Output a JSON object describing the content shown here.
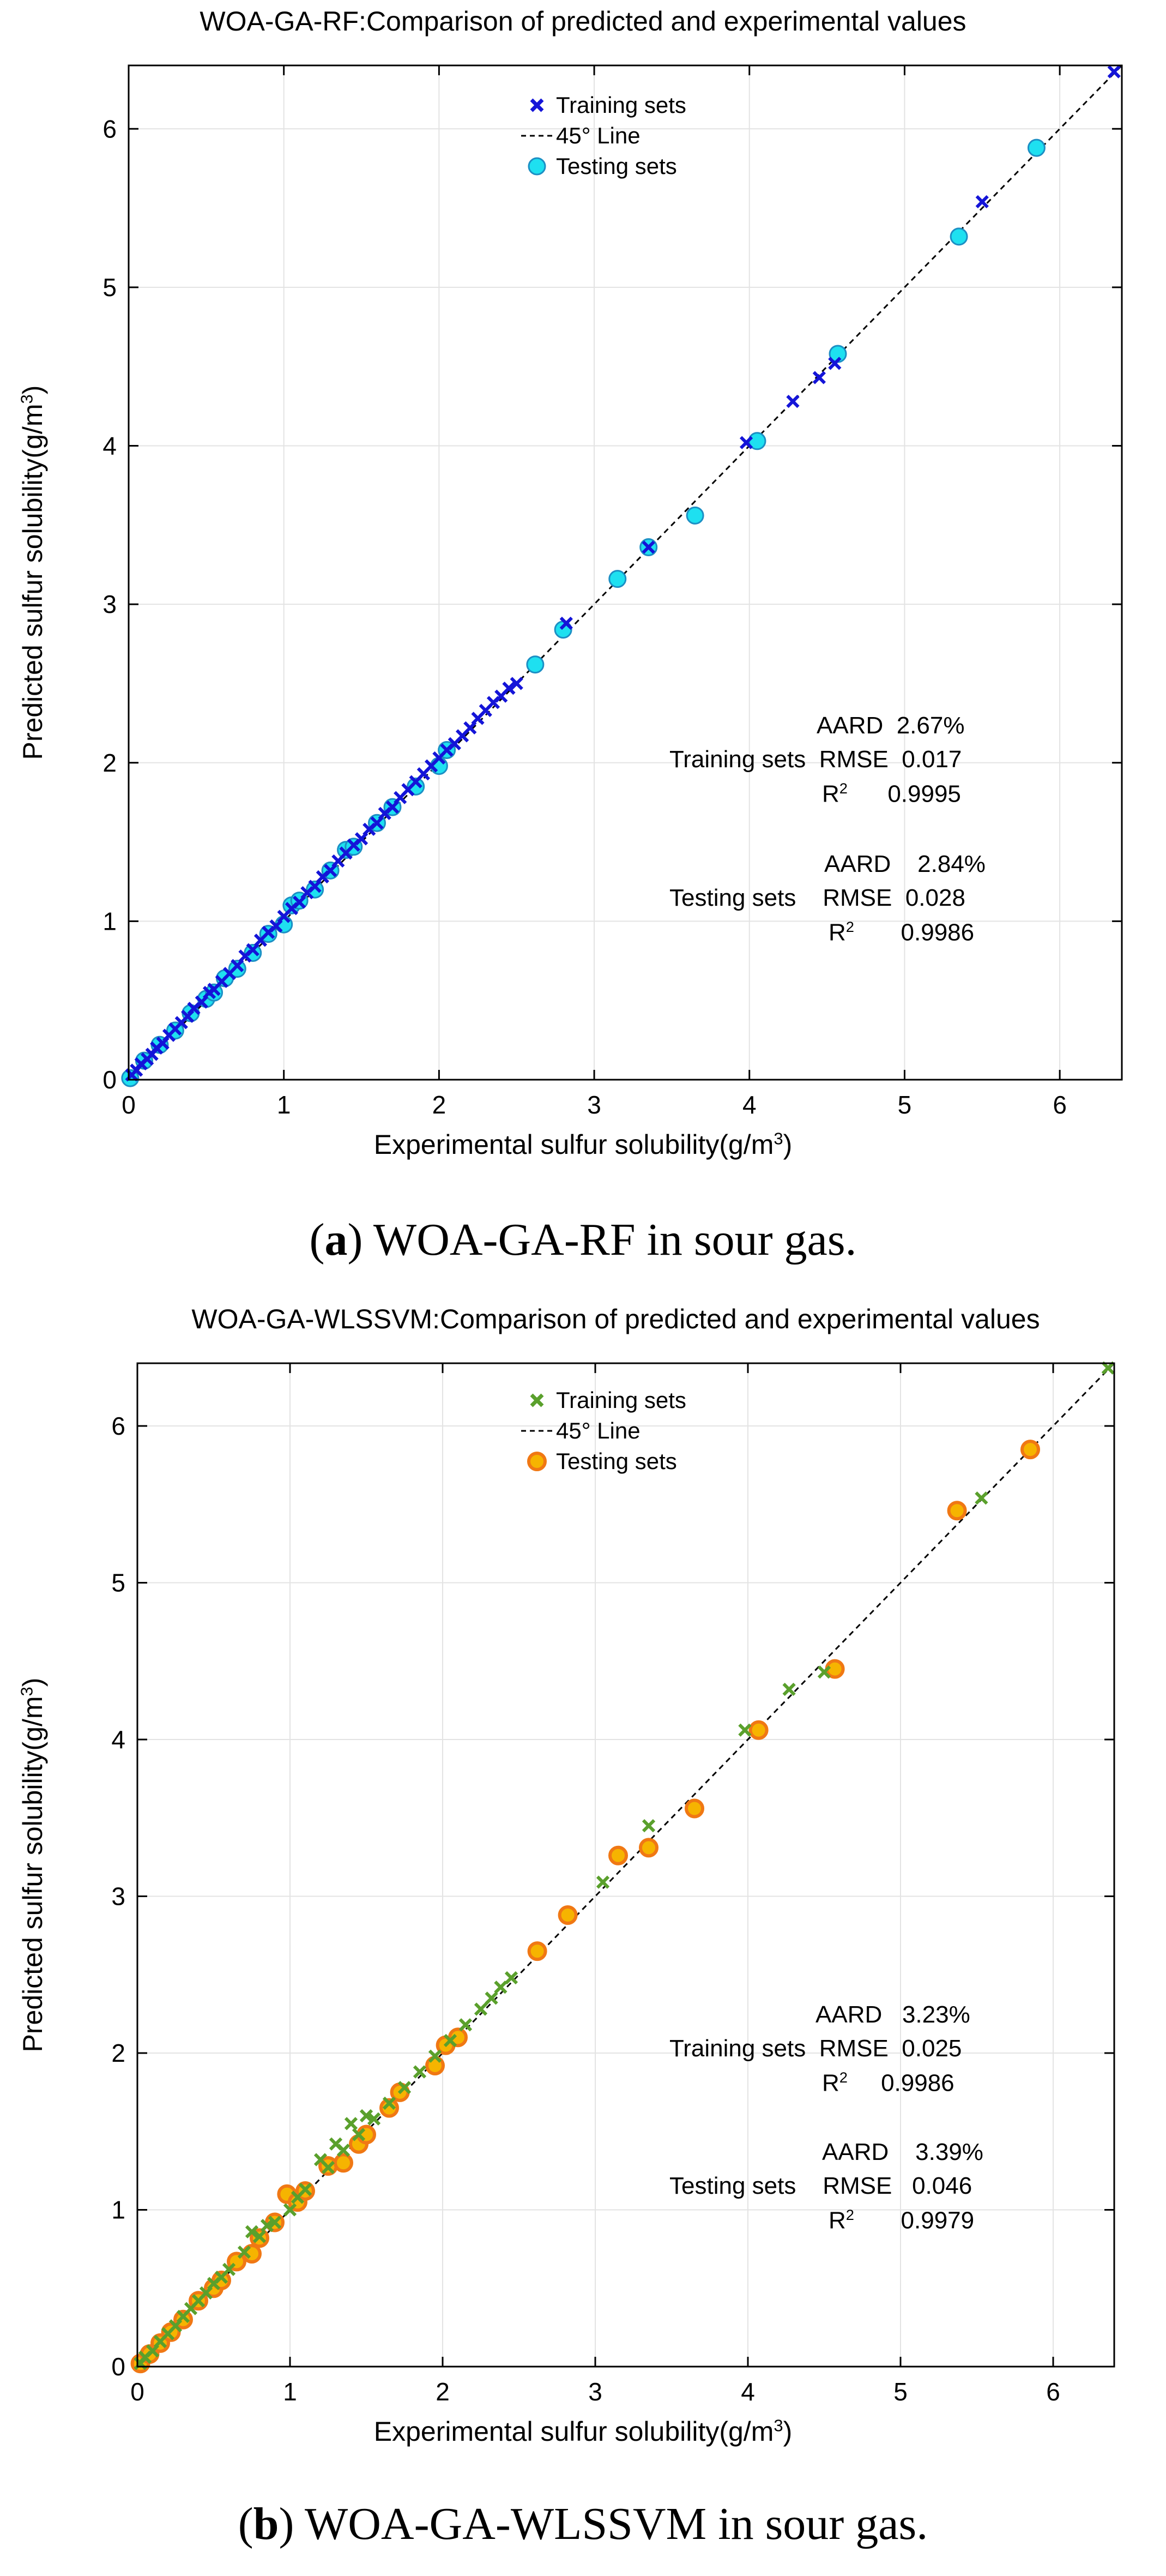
{
  "panels": [
    {
      "title": "WOA-GA-RF:Comparison of predicted and experimental values",
      "caption_letter": "a",
      "caption_rest": "WOA-GA-RF in sour gas.",
      "legend": {
        "train": "Training sets",
        "line": "45° Line",
        "test": "Testing sets"
      },
      "xlabel": "Experimental sulfur solubility(g/m",
      "ylabel": "Predicted sulfur solubility(g/m",
      "unit_sup": "3",
      "unit_close": ")",
      "colors": {
        "train": "#1414d8",
        "test_fill": "#1ee0f0",
        "test_edge": "#1c8fc4"
      },
      "metrics": {
        "training": {
          "label": "Training sets",
          "aard_label": "AARD",
          "aard": "2.67%",
          "rmse_label": "RMSE",
          "rmse": "0.017",
          "r2_label": "R",
          "r2_sup": "2",
          "r2": "0.9995"
        },
        "testing": {
          "label": "Testing sets",
          "aard_label": "AARD",
          "aard": "2.84%",
          "rmse_label": "RMSE",
          "rmse": "0.028",
          "r2_label": "R",
          "r2_sup": "2",
          "r2": "0.9986"
        }
      }
    },
    {
      "title": "WOA-GA-WLSSVM:Comparison of predicted and experimental values",
      "caption_letter": "b",
      "caption_rest": "WOA-GA-WLSSVM in sour gas.",
      "legend": {
        "train": "Training sets",
        "line": "45° Line",
        "test": "Testing sets"
      },
      "xlabel": "Experimental sulfur solubility(g/m",
      "ylabel": "Predicted sulfur solubility(g/m",
      "unit_sup": "3",
      "unit_close": ")",
      "colors": {
        "train": "#5aa02c",
        "test_fill": "#f6b400",
        "test_edge": "#f07814"
      },
      "metrics": {
        "training": {
          "label": "Training sets",
          "aard_label": "AARD",
          "aard": "3.23%",
          "rmse_label": "RMSE",
          "rmse": "0.025",
          "r2_label": "R",
          "r2_sup": "2",
          "r2": "0.9986"
        },
        "testing": {
          "label": "Testing sets",
          "aard_label": "AARD",
          "aard": "3.39%",
          "rmse_label": "RMSE",
          "rmse": "0.046",
          "r2_label": "R",
          "r2_sup": "2",
          "r2": "0.9979"
        }
      }
    }
  ],
  "chart_data": [
    {
      "type": "scatter",
      "title": "WOA-GA-RF:Comparison of predicted and experimental values",
      "xlabel": "Experimental sulfur solubility(g/m3)",
      "ylabel": "Predicted sulfur solubility(g/m3)",
      "xlim": [
        0,
        6.4
      ],
      "ylim": [
        0,
        6.4
      ],
      "xticks": [
        "0",
        "1",
        "2",
        "3",
        "4",
        "5",
        "6"
      ],
      "yticks": [
        "0",
        "1",
        "2",
        "3",
        "4",
        "5",
        "6"
      ],
      "grid": true,
      "legend_position": "top-center",
      "series": [
        {
          "name": "Training sets",
          "marker": "x",
          "points": [
            [
              0.02,
              0.03
            ],
            [
              0.05,
              0.06
            ],
            [
              0.08,
              0.1
            ],
            [
              0.12,
              0.13
            ],
            [
              0.15,
              0.16
            ],
            [
              0.18,
              0.2
            ],
            [
              0.22,
              0.23
            ],
            [
              0.26,
              0.28
            ],
            [
              0.3,
              0.32
            ],
            [
              0.34,
              0.36
            ],
            [
              0.38,
              0.4
            ],
            [
              0.42,
              0.45
            ],
            [
              0.47,
              0.49
            ],
            [
              0.52,
              0.55
            ],
            [
              0.55,
              0.57
            ],
            [
              0.6,
              0.62
            ],
            [
              0.65,
              0.67
            ],
            [
              0.7,
              0.72
            ],
            [
              0.75,
              0.78
            ],
            [
              0.8,
              0.82
            ],
            [
              0.85,
              0.88
            ],
            [
              0.9,
              0.93
            ],
            [
              0.95,
              0.97
            ],
            [
              1.0,
              1.03
            ],
            [
              1.05,
              1.08
            ],
            [
              1.1,
              1.12
            ],
            [
              1.15,
              1.18
            ],
            [
              1.2,
              1.22
            ],
            [
              1.25,
              1.28
            ],
            [
              1.3,
              1.32
            ],
            [
              1.35,
              1.38
            ],
            [
              1.4,
              1.43
            ],
            [
              1.45,
              1.48
            ],
            [
              1.5,
              1.52
            ],
            [
              1.55,
              1.58
            ],
            [
              1.6,
              1.62
            ],
            [
              1.65,
              1.68
            ],
            [
              1.7,
              1.72
            ],
            [
              1.75,
              1.78
            ],
            [
              1.8,
              1.83
            ],
            [
              1.85,
              1.88
            ],
            [
              1.9,
              1.93
            ],
            [
              1.95,
              1.98
            ],
            [
              2.0,
              2.03
            ],
            [
              2.05,
              2.08
            ],
            [
              2.1,
              2.12
            ],
            [
              2.15,
              2.17
            ],
            [
              2.2,
              2.22
            ],
            [
              2.25,
              2.28
            ],
            [
              2.3,
              2.33
            ],
            [
              2.35,
              2.38
            ],
            [
              2.4,
              2.42
            ],
            [
              2.45,
              2.47
            ],
            [
              2.5,
              2.5
            ],
            [
              2.82,
              2.88
            ],
            [
              3.35,
              3.36
            ],
            [
              3.98,
              4.02
            ],
            [
              4.28,
              4.28
            ],
            [
              4.45,
              4.43
            ],
            [
              4.55,
              4.52
            ],
            [
              5.5,
              5.54
            ],
            [
              6.35,
              6.36
            ]
          ]
        },
        {
          "name": "Testing sets",
          "marker": "o",
          "points": [
            [
              0.01,
              0.01
            ],
            [
              0.1,
              0.12
            ],
            [
              0.2,
              0.22
            ],
            [
              0.3,
              0.31
            ],
            [
              0.4,
              0.42
            ],
            [
              0.5,
              0.51
            ],
            [
              0.55,
              0.55
            ],
            [
              0.62,
              0.64
            ],
            [
              0.7,
              0.7
            ],
            [
              0.8,
              0.8
            ],
            [
              0.9,
              0.92
            ],
            [
              1.0,
              0.98
            ],
            [
              1.05,
              1.1
            ],
            [
              1.1,
              1.13
            ],
            [
              1.2,
              1.2
            ],
            [
              1.3,
              1.32
            ],
            [
              1.4,
              1.45
            ],
            [
              1.45,
              1.47
            ],
            [
              1.6,
              1.62
            ],
            [
              1.7,
              1.72
            ],
            [
              1.85,
              1.85
            ],
            [
              2.0,
              1.98
            ],
            [
              2.05,
              2.08
            ],
            [
              2.62,
              2.62
            ],
            [
              2.8,
              2.84
            ],
            [
              3.15,
              3.16
            ],
            [
              3.35,
              3.36
            ],
            [
              3.65,
              3.56
            ],
            [
              4.05,
              4.03
            ],
            [
              4.57,
              4.58
            ],
            [
              5.35,
              5.32
            ],
            [
              5.85,
              5.88
            ]
          ]
        },
        {
          "name": "45° Line",
          "marker": "dashed-line",
          "points": [
            [
              0,
              0
            ],
            [
              6.4,
              6.4
            ]
          ]
        }
      ],
      "annotations": [
        "Training sets AARD 2.67% RMSE 0.017 R2 0.9995",
        "Testing sets AARD 2.84% RMSE 0.028 R2 0.9986"
      ]
    },
    {
      "type": "scatter",
      "title": "WOA-GA-WLSSVM:Comparison of predicted and experimental values",
      "xlabel": "Experimental sulfur solubility(g/m3)",
      "ylabel": "Predicted sulfur solubility(g/m3)",
      "xlim": [
        0,
        6.4
      ],
      "ylim": [
        0,
        6.4
      ],
      "xticks": [
        "0",
        "1",
        "2",
        "3",
        "4",
        "5",
        "6"
      ],
      "yticks": [
        "0",
        "1",
        "2",
        "3",
        "4",
        "5",
        "6"
      ],
      "grid": true,
      "legend_position": "top-center",
      "series": [
        {
          "name": "Training sets",
          "marker": "x",
          "points": [
            [
              0.02,
              0.02
            ],
            [
              0.05,
              0.06
            ],
            [
              0.1,
              0.1
            ],
            [
              0.15,
              0.16
            ],
            [
              0.2,
              0.21
            ],
            [
              0.25,
              0.26
            ],
            [
              0.3,
              0.32
            ],
            [
              0.35,
              0.37
            ],
            [
              0.4,
              0.42
            ],
            [
              0.45,
              0.47
            ],
            [
              0.5,
              0.53
            ],
            [
              0.55,
              0.57
            ],
            [
              0.6,
              0.62
            ],
            [
              0.7,
              0.73
            ],
            [
              0.75,
              0.86
            ],
            [
              0.8,
              0.83
            ],
            [
              0.85,
              0.9
            ],
            [
              0.9,
              0.92
            ],
            [
              1.0,
              1.0
            ],
            [
              1.05,
              1.08
            ],
            [
              1.1,
              1.13
            ],
            [
              1.2,
              1.32
            ],
            [
              1.25,
              1.27
            ],
            [
              1.3,
              1.42
            ],
            [
              1.35,
              1.38
            ],
            [
              1.4,
              1.55
            ],
            [
              1.45,
              1.48
            ],
            [
              1.5,
              1.6
            ],
            [
              1.55,
              1.58
            ],
            [
              1.65,
              1.68
            ],
            [
              1.75,
              1.78
            ],
            [
              1.85,
              1.88
            ],
            [
              1.95,
              1.98
            ],
            [
              2.05,
              2.08
            ],
            [
              2.15,
              2.18
            ],
            [
              2.25,
              2.28
            ],
            [
              2.32,
              2.35
            ],
            [
              2.38,
              2.42
            ],
            [
              2.45,
              2.48
            ],
            [
              3.05,
              3.09
            ],
            [
              3.35,
              3.45
            ],
            [
              3.98,
              4.06
            ],
            [
              4.27,
              4.32
            ],
            [
              4.5,
              4.43
            ],
            [
              5.53,
              5.54
            ],
            [
              6.36,
              6.37
            ]
          ]
        },
        {
          "name": "Testing sets",
          "marker": "o",
          "points": [
            [
              0.02,
              0.02
            ],
            [
              0.08,
              0.08
            ],
            [
              0.15,
              0.15
            ],
            [
              0.22,
              0.22
            ],
            [
              0.3,
              0.3
            ],
            [
              0.4,
              0.42
            ],
            [
              0.5,
              0.5
            ],
            [
              0.55,
              0.55
            ],
            [
              0.65,
              0.67
            ],
            [
              0.75,
              0.72
            ],
            [
              0.8,
              0.82
            ],
            [
              0.9,
              0.92
            ],
            [
              0.98,
              1.1
            ],
            [
              1.05,
              1.05
            ],
            [
              1.1,
              1.12
            ],
            [
              1.25,
              1.28
            ],
            [
              1.35,
              1.3
            ],
            [
              1.45,
              1.42
            ],
            [
              1.5,
              1.48
            ],
            [
              1.65,
              1.65
            ],
            [
              1.72,
              1.75
            ],
            [
              1.95,
              1.92
            ],
            [
              2.02,
              2.05
            ],
            [
              2.1,
              2.1
            ],
            [
              2.62,
              2.65
            ],
            [
              2.82,
              2.88
            ],
            [
              3.15,
              3.26
            ],
            [
              3.35,
              3.31
            ],
            [
              3.65,
              3.56
            ],
            [
              4.07,
              4.06
            ],
            [
              4.57,
              4.45
            ],
            [
              5.37,
              5.46
            ],
            [
              5.85,
              5.85
            ]
          ]
        },
        {
          "name": "45° Line",
          "marker": "dashed-line",
          "points": [
            [
              0,
              0
            ],
            [
              6.4,
              6.4
            ]
          ]
        }
      ],
      "annotations": [
        "Training sets AARD 3.23% RMSE 0.025 R2 0.9986",
        "Testing sets AARD 3.39% RMSE 0.046 R2 0.9979"
      ]
    }
  ]
}
